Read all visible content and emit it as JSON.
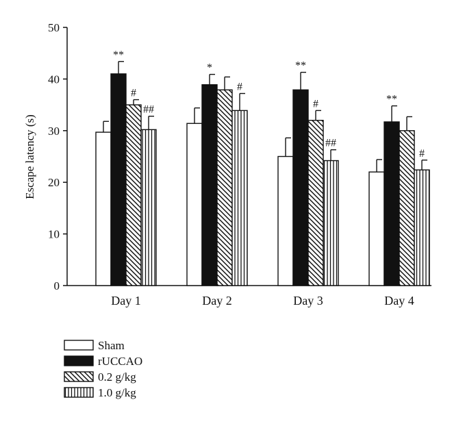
{
  "chart_data": {
    "type": "bar",
    "title": "",
    "xlabel": "",
    "ylabel": "Escape latency (s)",
    "ylim": [
      0,
      50
    ],
    "yticks": [
      "0",
      "10",
      "20",
      "30",
      "40",
      "50"
    ],
    "grid": false,
    "legend_position": "bottom-left",
    "categories": [
      "Day 1",
      "Day 2",
      "Day 3",
      "Day 4"
    ],
    "series": [
      {
        "name": "Sham",
        "fill": "white",
        "values": [
          29.7,
          31.4,
          25.0,
          22.0
        ],
        "errors": [
          2.1,
          3.0,
          3.6,
          2.4
        ],
        "annotations": [
          "",
          "",
          "",
          ""
        ]
      },
      {
        "name": "rUCCAO",
        "fill": "black",
        "values": [
          41.0,
          38.9,
          37.9,
          31.7
        ],
        "errors": [
          2.4,
          2.0,
          3.4,
          3.1
        ],
        "annotations": [
          "**",
          "*",
          "**",
          "**"
        ]
      },
      {
        "name": "0.2 g/kg",
        "fill": "diagonal",
        "values": [
          35.0,
          37.9,
          32.0,
          30.0
        ],
        "errors": [
          1.0,
          2.5,
          1.9,
          2.7
        ],
        "annotations": [
          "#",
          "",
          "#",
          ""
        ]
      },
      {
        "name": "1.0 g/kg",
        "fill": "vertical",
        "values": [
          30.2,
          33.9,
          24.2,
          22.4
        ],
        "errors": [
          2.6,
          3.3,
          2.1,
          1.9
        ],
        "annotations": [
          "##",
          "#",
          "##",
          "#"
        ]
      }
    ]
  }
}
